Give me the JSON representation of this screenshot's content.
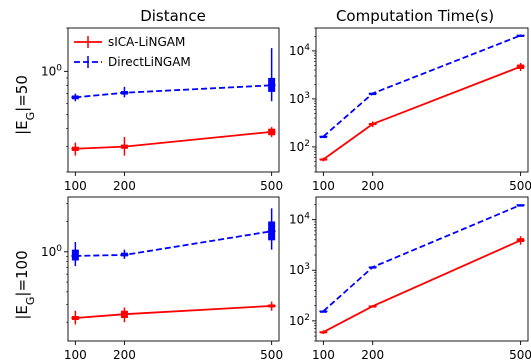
{
  "figure": {
    "col_titles": [
      "Distance",
      "Computation Time(s)"
    ],
    "row_labels": [
      "|E_G|=50",
      "|E_G|=100"
    ]
  },
  "legend": {
    "entries": [
      {
        "label": "sICA-LiNGAM",
        "color": "#ff0000",
        "style": "solid"
      },
      {
        "label": "DirectLiNGAM",
        "color": "#0000ff",
        "style": "dashed"
      }
    ],
    "placement": "upper-left of top-left panel"
  },
  "chart_data": [
    {
      "panel": "row1-distance",
      "type": "line",
      "x": [
        100,
        200,
        500
      ],
      "x_ticks": [
        "100",
        "200",
        "500"
      ],
      "y_scale": "log",
      "ylim": [
        0.2,
        2.0
      ],
      "y_tick_labels": [
        {
          "value": 1,
          "label": "10^0"
        }
      ],
      "series": [
        {
          "name": "sICA-LiNGAM",
          "color": "#ff0000",
          "style": "solid",
          "values": [
            0.29,
            0.3,
            0.38
          ],
          "err_low": [
            0.26,
            0.26,
            0.35
          ],
          "err_high": [
            0.32,
            0.35,
            0.41
          ],
          "box_low": [
            0.28,
            0.29,
            0.36
          ],
          "box_high": [
            0.3,
            0.31,
            0.4
          ]
        },
        {
          "name": "DirectLiNGAM",
          "color": "#0000ff",
          "style": "dashed",
          "values": [
            0.66,
            0.71,
            0.8
          ],
          "err_low": [
            0.62,
            0.66,
            0.62
          ],
          "err_high": [
            0.7,
            0.78,
            1.45
          ],
          "box_low": [
            0.64,
            0.69,
            0.72
          ],
          "box_high": [
            0.68,
            0.73,
            0.9
          ]
        }
      ]
    },
    {
      "panel": "row1-time",
      "type": "line",
      "x": [
        100,
        200,
        500
      ],
      "x_ticks": [
        "100",
        "200",
        "500"
      ],
      "y_scale": "log",
      "ylim": [
        30,
        30000
      ],
      "y_tick_labels": [
        {
          "value": 100,
          "label": "10^2"
        },
        {
          "value": 1000,
          "label": "10^3"
        },
        {
          "value": 10000,
          "label": "10^4"
        }
      ],
      "series": [
        {
          "name": "sICA-LiNGAM",
          "color": "#ff0000",
          "style": "solid",
          "values": [
            55,
            300,
            4700
          ],
          "err_low": [
            50,
            260,
            3800
          ],
          "err_high": [
            60,
            340,
            5600
          ],
          "box_low": [
            53,
            285,
            4200
          ],
          "box_high": [
            57,
            315,
            5200
          ]
        },
        {
          "name": "DirectLiNGAM",
          "color": "#0000ff",
          "style": "dashed",
          "values": [
            165,
            1300,
            21000
          ],
          "err_low": [
            160,
            1250,
            20000
          ],
          "err_high": [
            170,
            1350,
            22000
          ],
          "box_low": [
            162,
            1280,
            20500
          ],
          "box_high": [
            168,
            1320,
            21500
          ]
        }
      ]
    },
    {
      "panel": "row2-distance",
      "type": "line",
      "x": [
        100,
        200,
        500
      ],
      "x_ticks": [
        "100",
        "200",
        "500"
      ],
      "y_scale": "log",
      "ylim": [
        0.13,
        3.5
      ],
      "y_tick_labels": [
        {
          "value": 1,
          "label": "10^0"
        }
      ],
      "series": [
        {
          "name": "sICA-LiNGAM",
          "color": "#ff0000",
          "style": "solid",
          "values": [
            0.22,
            0.24,
            0.29
          ],
          "err_low": [
            0.19,
            0.2,
            0.26
          ],
          "err_high": [
            0.26,
            0.28,
            0.32
          ],
          "box_low": [
            0.21,
            0.22,
            0.28
          ],
          "box_high": [
            0.23,
            0.26,
            0.3
          ]
        },
        {
          "name": "DirectLiNGAM",
          "color": "#0000ff",
          "style": "dashed",
          "values": [
            0.91,
            0.93,
            1.6
          ],
          "err_low": [
            0.72,
            0.85,
            1.05
          ],
          "err_high": [
            1.25,
            1.05,
            2.7
          ],
          "box_low": [
            0.82,
            0.9,
            1.3
          ],
          "box_high": [
            1.05,
            0.98,
            2.0
          ]
        }
      ]
    },
    {
      "panel": "row2-time",
      "type": "line",
      "x": [
        100,
        200,
        500
      ],
      "x_ticks": [
        "100",
        "200",
        "500"
      ],
      "y_scale": "log",
      "ylim": [
        40,
        28000
      ],
      "y_tick_labels": [
        {
          "value": 100,
          "label": "10^2"
        },
        {
          "value": 1000,
          "label": "10^3"
        },
        {
          "value": 10000,
          "label": "10^4"
        }
      ],
      "series": [
        {
          "name": "sICA-LiNGAM",
          "color": "#ff0000",
          "style": "solid",
          "values": [
            60,
            195,
            3900
          ],
          "err_low": [
            55,
            185,
            3200
          ],
          "err_high": [
            65,
            205,
            4700
          ],
          "box_low": [
            58,
            190,
            3600
          ],
          "box_high": [
            62,
            200,
            4300
          ]
        },
        {
          "name": "DirectLiNGAM",
          "color": "#0000ff",
          "style": "dashed",
          "values": [
            155,
            1150,
            19500
          ],
          "err_low": [
            150,
            1100,
            19000
          ],
          "err_high": [
            160,
            1200,
            20000
          ],
          "box_low": [
            152,
            1120,
            19200
          ],
          "box_high": [
            158,
            1180,
            19800
          ]
        }
      ]
    }
  ]
}
